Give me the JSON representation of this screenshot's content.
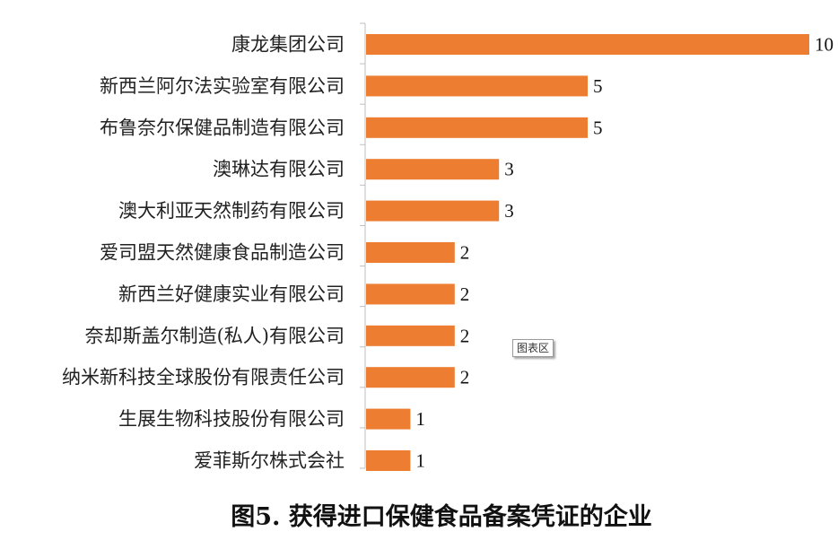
{
  "chart_data": {
    "type": "bar",
    "orientation": "horizontal",
    "categories": [
      "康龙集团公司",
      "新西兰阿尔法实验室有限公司",
      "布鲁奈尔保健品制造有限公司",
      "澳琳达有限公司",
      "澳大利亚天然制药有限公司",
      "爱司盟天然健康食品制造公司",
      "新西兰好健康实业有限公司",
      "奈却斯盖尔制造(私人)有限公司",
      "纳米新科技全球股份有限责任公司",
      "生展生物科技股份有限公司",
      "爱菲斯尔株式会社"
    ],
    "values": [
      10,
      5,
      5,
      3,
      3,
      2,
      2,
      2,
      2,
      1,
      1
    ],
    "xlim": [
      0,
      10
    ],
    "grid": false,
    "legend": "none",
    "bar_color": "#ED7D31",
    "data_labels": true
  },
  "tooltip": "图表区",
  "caption": "图5. 获得进口保健食品备案凭证的企业"
}
